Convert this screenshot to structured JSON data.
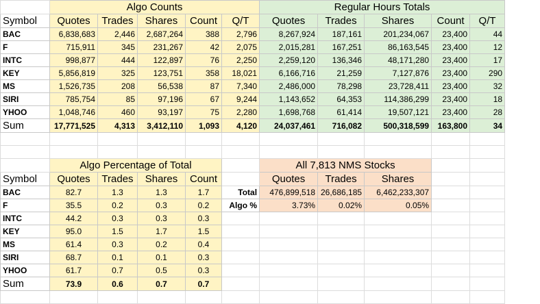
{
  "algo_counts": {
    "title": "Algo Counts",
    "columns": [
      "Quotes",
      "Trades",
      "Shares",
      "Count",
      "Q/T"
    ],
    "rows": [
      {
        "symbol": "BAC",
        "values": [
          "6,838,683",
          "2,446",
          "2,687,264",
          "388",
          "2,796"
        ]
      },
      {
        "symbol": "F",
        "values": [
          "715,911",
          "345",
          "231,267",
          "42",
          "2,075"
        ]
      },
      {
        "symbol": "INTC",
        "values": [
          "998,877",
          "444",
          "122,897",
          "76",
          "2,250"
        ]
      },
      {
        "symbol": "KEY",
        "values": [
          "5,856,819",
          "325",
          "123,751",
          "358",
          "18,021"
        ]
      },
      {
        "symbol": "MS",
        "values": [
          "1,526,735",
          "208",
          "56,538",
          "87",
          "7,340"
        ]
      },
      {
        "symbol": "SIRI",
        "values": [
          "785,754",
          "85",
          "97,196",
          "67",
          "9,244"
        ]
      },
      {
        "symbol": "YHOO",
        "values": [
          "1,048,746",
          "460",
          "93,197",
          "75",
          "2,280"
        ]
      }
    ],
    "sum": [
      "17,771,525",
      "4,313",
      "3,412,110",
      "1,093",
      "4,120"
    ]
  },
  "regular_hours": {
    "title": "Regular Hours Totals",
    "columns": [
      "Quotes",
      "Trades",
      "Shares",
      "Count",
      "Q/T"
    ],
    "rows": [
      [
        "8,267,924",
        "187,161",
        "201,234,067",
        "23,400",
        "44"
      ],
      [
        "2,015,281",
        "167,251",
        "86,163,545",
        "23,400",
        "12"
      ],
      [
        "2,259,120",
        "136,346",
        "48,171,280",
        "23,400",
        "17"
      ],
      [
        "6,166,716",
        "21,259",
        "7,127,876",
        "23,400",
        "290"
      ],
      [
        "2,486,000",
        "78,298",
        "23,728,411",
        "23,400",
        "32"
      ],
      [
        "1,143,652",
        "64,353",
        "114,386,299",
        "23,400",
        "18"
      ],
      [
        "1,698,768",
        "61,414",
        "19,507,121",
        "23,400",
        "28"
      ]
    ],
    "sum": [
      "24,037,461",
      "716,082",
      "500,318,599",
      "163,800",
      "34"
    ]
  },
  "algo_pct": {
    "title": "Algo Percentage of Total",
    "columns": [
      "Quotes",
      "Trades",
      "Shares",
      "Count"
    ],
    "rows": [
      {
        "symbol": "BAC",
        "values": [
          "82.7",
          "1.3",
          "1.3",
          "1.7"
        ]
      },
      {
        "symbol": "F",
        "values": [
          "35.5",
          "0.2",
          "0.3",
          "0.2"
        ]
      },
      {
        "symbol": "INTC",
        "values": [
          "44.2",
          "0.3",
          "0.3",
          "0.3"
        ]
      },
      {
        "symbol": "KEY",
        "values": [
          "95.0",
          "1.5",
          "1.7",
          "1.5"
        ]
      },
      {
        "symbol": "MS",
        "values": [
          "61.4",
          "0.3",
          "0.2",
          "0.4"
        ]
      },
      {
        "symbol": "SIRI",
        "values": [
          "68.7",
          "0.1",
          "0.1",
          "0.3"
        ]
      },
      {
        "symbol": "YHOO",
        "values": [
          "61.7",
          "0.7",
          "0.5",
          "0.3"
        ]
      }
    ],
    "sum": [
      "73.9",
      "0.6",
      "0.7",
      "0.7"
    ]
  },
  "nms": {
    "title": "All 7,813 NMS Stocks",
    "columns": [
      "Quotes",
      "Trades",
      "Shares"
    ],
    "total_label": "Total",
    "total": [
      "476,899,518",
      "26,686,185",
      "6,462,233,307"
    ],
    "algo_label": "Algo %",
    "algo": [
      "3.73%",
      "0.02%",
      "0.05%"
    ]
  },
  "labels": {
    "symbol": "Symbol",
    "sum": "Sum"
  },
  "colors": {
    "algo_fill": "#fff4c4",
    "regular_fill": "#dcefd6",
    "nms_fill": "#fbdfc8",
    "gridline": "#c8c8c8"
  }
}
